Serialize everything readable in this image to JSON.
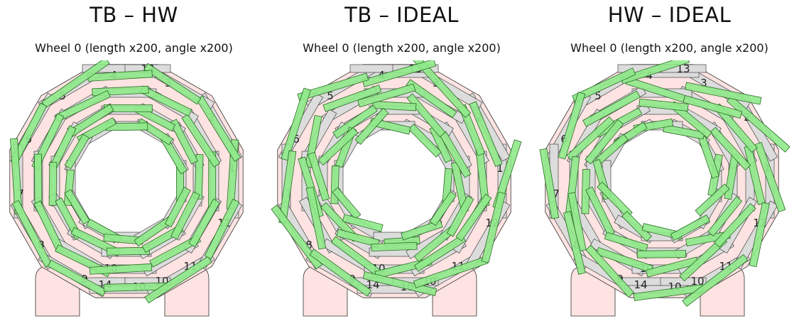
{
  "panels": [
    {
      "title": "TB – HW",
      "subtitle": "Wheel 0 (length x200, angle x200)",
      "mode": "tbhw"
    },
    {
      "title": "TB – IDEAL",
      "subtitle": "Wheel 0 (length x200, angle x200)",
      "mode": "ideal"
    },
    {
      "title": "HW – IDEAL",
      "subtitle": "Wheel 0 (length x200, angle x200)",
      "mode": "ideal2"
    }
  ],
  "sector_labels": [
    "1",
    "2",
    "3",
    "4",
    "5",
    "6",
    "7",
    "8",
    "9",
    "10",
    "11",
    "12",
    "13",
    "14"
  ],
  "colors": {
    "yoke_fill": "#fde3e1",
    "chamber_fill": "#dcdcdc",
    "chamber_stroke": "#444444",
    "displaced_fill": "#8fe98a",
    "displaced_stroke": "#2b6b25",
    "outline": "#333333"
  }
}
